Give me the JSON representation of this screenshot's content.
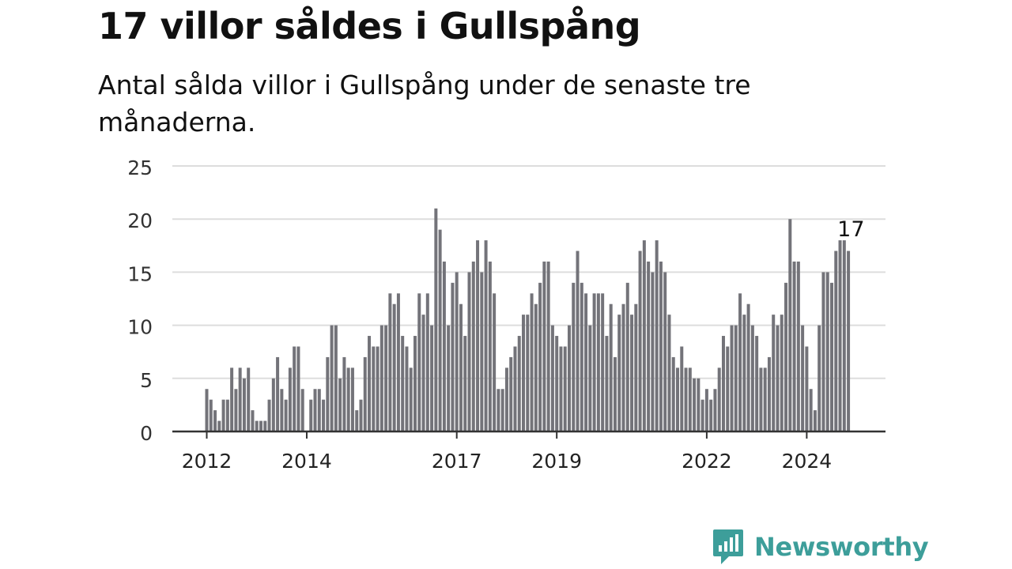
{
  "title": "17 villor såldes i Gullspång",
  "subtitle": "Antal sålda villor i Gullspång under de senaste tre månaderna.",
  "brand": {
    "name": "Newsworthy",
    "icon": "newsworthy-logo-icon",
    "color": "#3d9e9a"
  },
  "colors": {
    "bar": "#737379",
    "highlight": "#2aa198",
    "grid": "#dddddd",
    "axis": "#333333"
  },
  "chart_data": {
    "type": "bar",
    "x_start": "2012-01",
    "interval": "month",
    "ylim": [
      0,
      25
    ],
    "y_ticks": [
      0,
      5,
      10,
      15,
      20,
      25
    ],
    "x_ticks": [
      {
        "label": "2012",
        "month_index": 0
      },
      {
        "label": "2014",
        "month_index": 24
      },
      {
        "label": "2017",
        "month_index": 60
      },
      {
        "label": "2019",
        "month_index": 84
      },
      {
        "label": "2022",
        "month_index": 120
      },
      {
        "label": "2024",
        "month_index": 144
      }
    ],
    "values": [
      4,
      3,
      2,
      1,
      3,
      3,
      6,
      4,
      6,
      5,
      6,
      2,
      1,
      1,
      1,
      3,
      5,
      7,
      4,
      3,
      6,
      8,
      8,
      4,
      0,
      3,
      4,
      4,
      3,
      7,
      10,
      10,
      5,
      7,
      6,
      6,
      2,
      3,
      7,
      9,
      8,
      8,
      10,
      10,
      13,
      12,
      13,
      9,
      8,
      6,
      9,
      13,
      11,
      13,
      10,
      21,
      19,
      16,
      10,
      14,
      15,
      12,
      9,
      15,
      16,
      18,
      15,
      18,
      16,
      13,
      4,
      4,
      6,
      7,
      8,
      9,
      11,
      11,
      13,
      12,
      14,
      16,
      16,
      10,
      9,
      8,
      8,
      10,
      14,
      17,
      14,
      13,
      10,
      13,
      13,
      13,
      9,
      12,
      7,
      11,
      12,
      14,
      11,
      12,
      17,
      18,
      16,
      15,
      18,
      16,
      15,
      11,
      7,
      6,
      8,
      6,
      6,
      5,
      5,
      3,
      4,
      3,
      4,
      6,
      9,
      8,
      10,
      10,
      13,
      11,
      12,
      10,
      9,
      6,
      6,
      7,
      11,
      10,
      11,
      14,
      20,
      16,
      16,
      10,
      8,
      4,
      2,
      10,
      15,
      15,
      14,
      17,
      18,
      18,
      17
    ],
    "highlight_index": 155,
    "highlight_label": "17"
  }
}
